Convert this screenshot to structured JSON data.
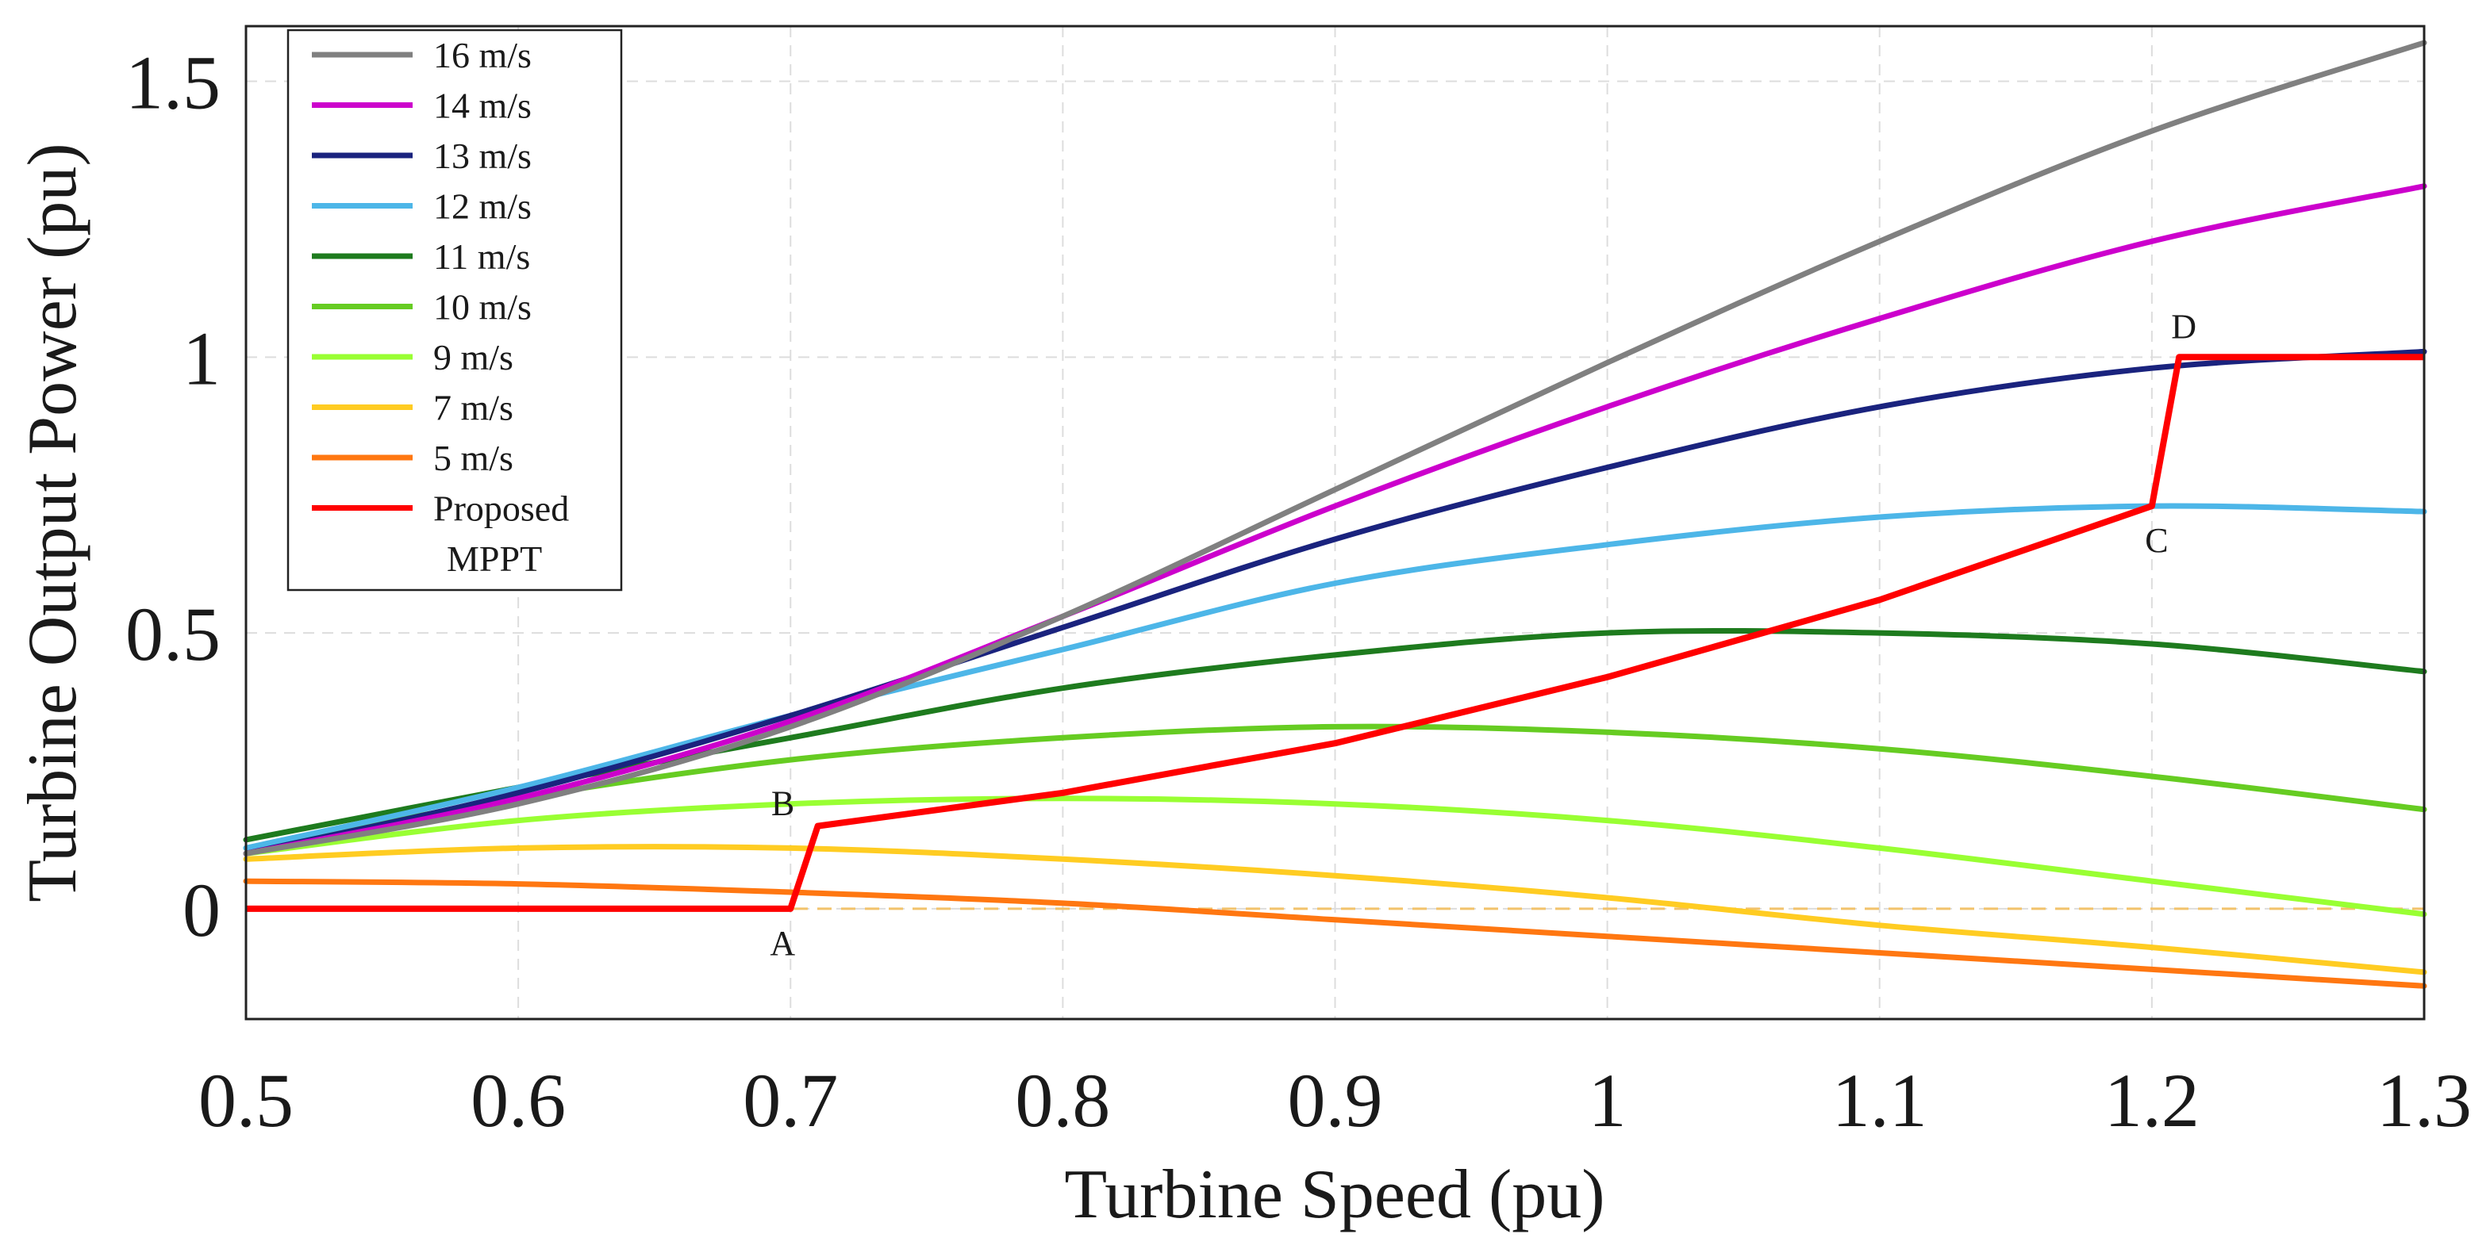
{
  "chart_data": {
    "type": "line",
    "title": "",
    "xlabel": "Turbine Speed (pu)",
    "ylabel": "Turbine Output Power (pu)",
    "xlim": [
      0.5,
      1.3
    ],
    "ylim": [
      -0.2,
      1.6
    ],
    "xticks": [
      "0.5",
      "0.6",
      "0.7",
      "0.8",
      "0.9",
      "1",
      "1.1",
      "1.2",
      "1.3"
    ],
    "yticks": [
      "0",
      "0.5",
      "1",
      "1.5"
    ],
    "grid": true,
    "legend_position": "top-left",
    "x": [
      0.5,
      0.6,
      0.7,
      0.8,
      0.9,
      1.0,
      1.1,
      1.2,
      1.3
    ],
    "series": [
      {
        "name": "16 m/s",
        "color": "#808080",
        "values": [
          0.1,
          0.19,
          0.33,
          0.53,
          0.76,
          0.99,
          1.21,
          1.41,
          1.57
        ]
      },
      {
        "name": "14 m/s",
        "color": "#cc00cc",
        "values": [
          0.1,
          0.2,
          0.34,
          0.53,
          0.73,
          0.91,
          1.07,
          1.21,
          1.31
        ]
      },
      {
        "name": "13 m/s",
        "color": "#1a237e",
        "values": [
          0.1,
          0.21,
          0.35,
          0.51,
          0.67,
          0.8,
          0.91,
          0.98,
          1.01
        ]
      },
      {
        "name": "12 m/s",
        "color": "#4db6e8",
        "values": [
          0.11,
          0.22,
          0.35,
          0.47,
          0.59,
          0.66,
          0.71,
          0.73,
          0.72
        ]
      },
      {
        "name": "11 m/s",
        "color": "#1e7b1e",
        "values": [
          0.125,
          0.22,
          0.31,
          0.4,
          0.46,
          0.5,
          0.5,
          0.48,
          0.43
        ]
      },
      {
        "name": "10 m/s",
        "color": "#66cc22",
        "values": [
          0.11,
          0.2,
          0.27,
          0.31,
          0.33,
          0.32,
          0.29,
          0.24,
          0.18
        ]
      },
      {
        "name": "9 m/s",
        "color": "#99ff33",
        "values": [
          0.1,
          0.16,
          0.19,
          0.2,
          0.19,
          0.16,
          0.11,
          0.05,
          -0.01
        ]
      },
      {
        "name": "7 m/s",
        "color": "#ffcc22",
        "values": [
          0.09,
          0.11,
          0.11,
          0.09,
          0.06,
          0.02,
          -0.03,
          -0.07,
          -0.115
        ]
      },
      {
        "name": "5 m/s",
        "color": "#ff7711",
        "values": [
          0.05,
          0.045,
          0.03,
          0.01,
          -0.02,
          -0.05,
          -0.08,
          -0.11,
          -0.14
        ]
      },
      {
        "name": "Proposed MPPT",
        "color": "#ff0000",
        "points": [
          [
            0.5,
            0.0
          ],
          [
            0.7,
            0.0
          ],
          [
            0.71,
            0.15
          ],
          [
            0.8,
            0.21
          ],
          [
            0.9,
            0.3
          ],
          [
            1.0,
            0.42
          ],
          [
            1.1,
            0.56
          ],
          [
            1.2,
            0.73
          ],
          [
            1.21,
            1.0
          ],
          [
            1.3,
            1.0
          ]
        ]
      }
    ],
    "reference_line": {
      "y": 0,
      "color": "#f2c26b",
      "style": "dashed"
    },
    "annotations": [
      {
        "text": "A",
        "x": 0.7,
        "y": 0.0
      },
      {
        "text": "B",
        "x": 0.71,
        "y": 0.15
      },
      {
        "text": "C",
        "x": 1.2,
        "y": 0.73
      },
      {
        "text": "D",
        "x": 1.21,
        "y": 1.0
      }
    ],
    "legend": [
      "16 m/s",
      "14 m/s",
      "13 m/s",
      "12 m/s",
      "11 m/s",
      "10 m/s",
      "9 m/s",
      "7 m/s",
      "5 m/s",
      "Proposed",
      "MPPT"
    ]
  }
}
